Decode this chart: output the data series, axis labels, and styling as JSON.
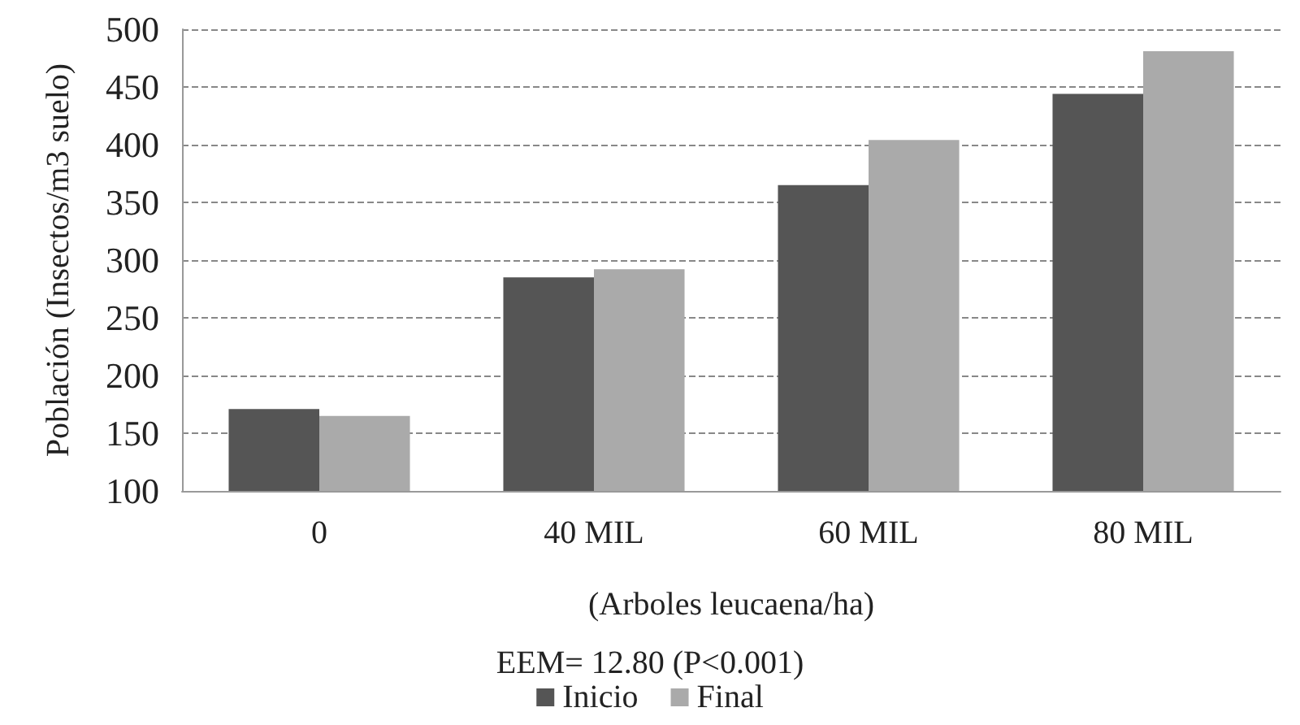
{
  "chart_data": {
    "type": "bar",
    "categories": [
      "0",
      "40 MIL",
      "60 MIL",
      "80 MIL"
    ],
    "series": [
      {
        "name": "Inicio",
        "color": "#555555",
        "values": [
          171,
          285,
          365,
          444
        ]
      },
      {
        "name": "Final",
        "color": "#aaaaaa",
        "values": [
          165,
          292,
          404,
          481
        ]
      }
    ],
    "ylabel": "Población (Insectos/m3 suelo)",
    "xlabel": "(Arboles leucaena/ha)",
    "annotations": [
      "EEM= 12.80 (P<0.001)"
    ],
    "ylim": [
      100,
      500
    ],
    "yticks": [
      100,
      150,
      200,
      250,
      300,
      350,
      400,
      450,
      500
    ],
    "grid": "y",
    "legend": "bottom"
  }
}
